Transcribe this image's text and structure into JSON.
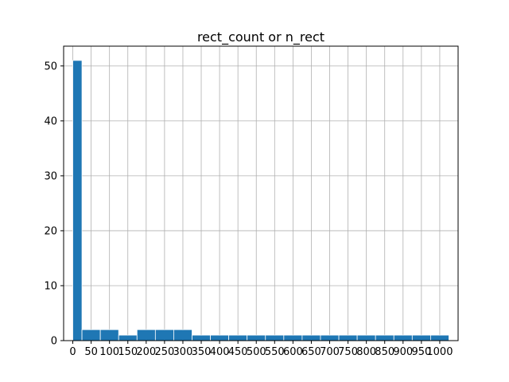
{
  "chart_data": {
    "type": "bar",
    "title": "rect_count or n_rect",
    "xlabel": "",
    "ylabel": "",
    "bin_edges": [
      0,
      25,
      75,
      125,
      175,
      225,
      275,
      325,
      375,
      425,
      475,
      525,
      575,
      625,
      675,
      725,
      775,
      825,
      875,
      925,
      975,
      1025
    ],
    "values": [
      51,
      2,
      2,
      1,
      2,
      2,
      2,
      1,
      1,
      1,
      1,
      1,
      1,
      1,
      1,
      1,
      1,
      1,
      1,
      1,
      1
    ],
    "x_ticks": [
      0,
      50,
      100,
      150,
      200,
      250,
      300,
      350,
      400,
      450,
      500,
      550,
      600,
      650,
      700,
      750,
      800,
      850,
      900,
      950,
      1000
    ],
    "y_ticks": [
      0,
      10,
      20,
      30,
      40,
      50
    ],
    "xlim": [
      -25,
      1050
    ],
    "ylim": [
      0,
      53.6
    ],
    "grid": true,
    "bar_color": "#1f77b4",
    "bar_edge_color": "#ffffff",
    "grid_color": "#b0b0b0"
  }
}
